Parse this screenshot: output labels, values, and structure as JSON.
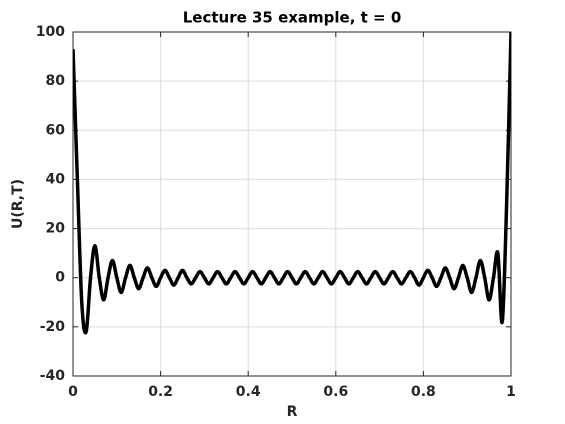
{
  "chart_data": {
    "type": "line",
    "title": "Lecture 35 example, t = 0",
    "xlabel": "R",
    "ylabel": "U(R,T)",
    "x": [
      0,
      0.01,
      0.02,
      0.03,
      0.04,
      0.05,
      0.06,
      0.07,
      0.08,
      0.09,
      0.1,
      0.11,
      0.12,
      0.13,
      0.14,
      0.15,
      0.16,
      0.17,
      0.18,
      0.19,
      0.2,
      0.21,
      0.22,
      0.23,
      0.24,
      0.25,
      0.26,
      0.27,
      0.28,
      0.29,
      0.3,
      0.31,
      0.32,
      0.33,
      0.34,
      0.35,
      0.36,
      0.37,
      0.38,
      0.39,
      0.4,
      0.41,
      0.42,
      0.43,
      0.44,
      0.45,
      0.46,
      0.47,
      0.48,
      0.49,
      0.5,
      0.51,
      0.52,
      0.53,
      0.54,
      0.55,
      0.56,
      0.57,
      0.58,
      0.59,
      0.6,
      0.61,
      0.62,
      0.63,
      0.64,
      0.65,
      0.66,
      0.67,
      0.68,
      0.69,
      0.7,
      0.71,
      0.72,
      0.73,
      0.74,
      0.75,
      0.76,
      0.77,
      0.78,
      0.79,
      0.8,
      0.81,
      0.82,
      0.83,
      0.84,
      0.85,
      0.86,
      0.87,
      0.88,
      0.89,
      0.9,
      0.91,
      0.92,
      0.93,
      0.94,
      0.95,
      0.96,
      0.97,
      0.98,
      0.99,
      1
    ],
    "series": [
      {
        "color": "#000000",
        "values": [
          93,
          40,
          -10,
          -22,
          0,
          13,
          0,
          -9,
          0,
          7,
          0,
          -6,
          0,
          5,
          0,
          -4.5,
          0,
          4,
          0,
          -3.5,
          0,
          3,
          0,
          -3,
          0,
          3,
          0,
          -2.5,
          0,
          2.5,
          0,
          -2.5,
          0,
          2.5,
          0,
          -2.5,
          0,
          2.5,
          0,
          -2.5,
          0,
          2.5,
          0,
          -2.5,
          0,
          2.5,
          0,
          -2.5,
          0,
          2.5,
          0,
          -2.5,
          0,
          2.5,
          0,
          -2.5,
          0,
          2.5,
          0,
          -2.5,
          0,
          2.5,
          0,
          -2.5,
          0,
          2.5,
          0,
          -2.5,
          0,
          2.5,
          0,
          -2.5,
          0,
          2.5,
          0,
          -2.5,
          0,
          2.5,
          0,
          -3,
          0,
          3,
          0,
          -3.5,
          0,
          4,
          0,
          -4.5,
          0,
          5,
          0,
          -6,
          0,
          7,
          0,
          -9,
          0,
          10,
          -18,
          30,
          100
        ]
      }
    ],
    "xlim": [
      0,
      1
    ],
    "xticks": [
      0,
      0.2,
      0.4,
      0.6,
      0.8,
      1
    ],
    "ylim": [
      -40,
      100
    ],
    "yticks": [
      -40,
      -20,
      0,
      20,
      40,
      60,
      80,
      100
    ],
    "grid": true
  }
}
